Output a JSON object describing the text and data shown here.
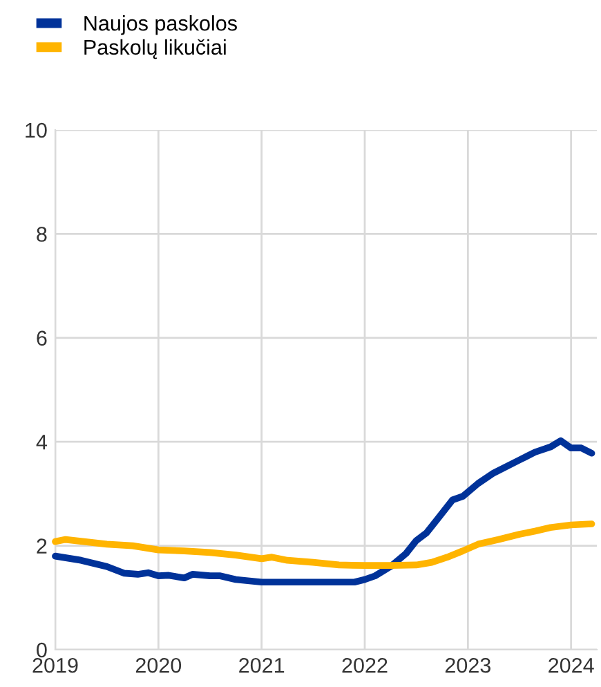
{
  "chart_data": {
    "type": "line",
    "legend": "top left",
    "grid": true,
    "xlim": [
      2019,
      2024.25
    ],
    "xticks": [
      2019,
      2020,
      2021,
      2022,
      2023,
      2024
    ],
    "ylim": [
      0,
      10
    ],
    "yticks": [
      0,
      2,
      4,
      6,
      8,
      10
    ],
    "series": [
      {
        "name": "Naujos paskolos",
        "color": "#003299",
        "x": [
          2019.0,
          2019.25,
          2019.5,
          2019.67,
          2019.8,
          2019.9,
          2020.0,
          2020.1,
          2020.25,
          2020.33,
          2020.5,
          2020.6,
          2020.75,
          2020.9,
          2021.0,
          2021.5,
          2021.9,
          2022.0,
          2022.1,
          2022.25,
          2022.4,
          2022.5,
          2022.6,
          2022.7,
          2022.85,
          2022.95,
          2023.1,
          2023.25,
          2023.5,
          2023.65,
          2023.8,
          2023.9,
          2024.0,
          2024.1,
          2024.2
        ],
        "values": [
          1.8,
          1.72,
          1.6,
          1.47,
          1.45,
          1.48,
          1.42,
          1.43,
          1.38,
          1.45,
          1.42,
          1.42,
          1.35,
          1.32,
          1.3,
          1.3,
          1.3,
          1.35,
          1.42,
          1.6,
          1.85,
          2.1,
          2.25,
          2.5,
          2.88,
          2.95,
          3.2,
          3.4,
          3.65,
          3.8,
          3.9,
          4.02,
          3.88,
          3.88,
          3.78
        ]
      },
      {
        "name": "Paskolų likučiai",
        "color": "#ffb400",
        "x": [
          2019.0,
          2019.1,
          2019.5,
          2019.75,
          2020.0,
          2020.25,
          2020.5,
          2020.75,
          2021.0,
          2021.1,
          2021.25,
          2021.5,
          2021.75,
          2022.0,
          2022.25,
          2022.5,
          2022.65,
          2022.8,
          2022.95,
          2023.1,
          2023.3,
          2023.5,
          2023.65,
          2023.8,
          2024.0,
          2024.2
        ],
        "values": [
          2.08,
          2.12,
          2.03,
          2.0,
          1.92,
          1.9,
          1.87,
          1.82,
          1.75,
          1.78,
          1.72,
          1.68,
          1.63,
          1.62,
          1.62,
          1.63,
          1.68,
          1.78,
          1.9,
          2.03,
          2.12,
          2.22,
          2.28,
          2.35,
          2.4,
          2.42
        ]
      }
    ]
  }
}
